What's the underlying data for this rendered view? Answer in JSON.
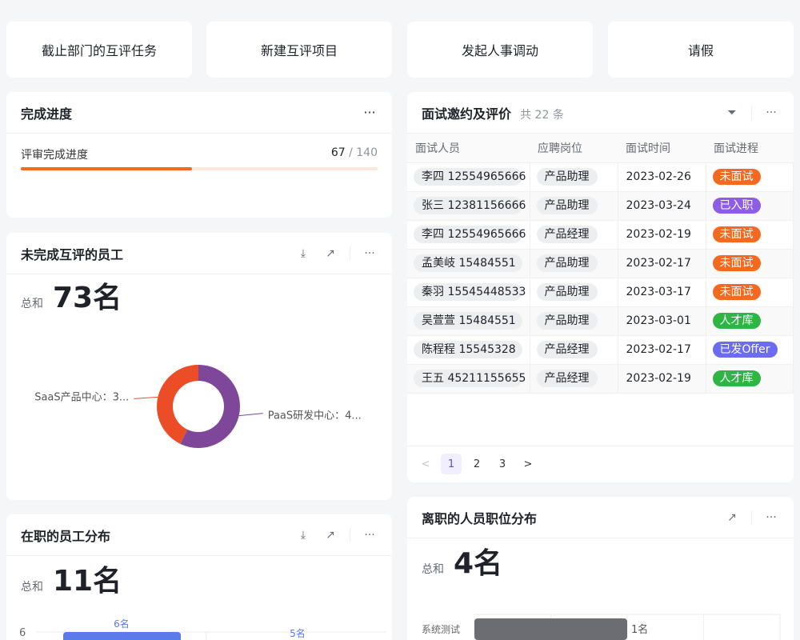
{
  "quick_actions": [
    "截止部门的互评任务",
    "新建互评项目",
    "发起人事调动",
    "请假"
  ],
  "progress_card": {
    "title": "完成进度",
    "label": "评审完成进度",
    "done": "67",
    "sep": " / ",
    "total": "140",
    "fraction": 0.479,
    "color": "#f26b1d"
  },
  "pending_card": {
    "title": "未完成互评的员工",
    "sum_label": "总和",
    "sum_value": "73名",
    "chart_data": {
      "type": "pie",
      "donut": true,
      "slices": [
        {
          "name": "PaaS研发中心",
          "value": 4,
          "label": "PaaS研发中心：4...",
          "color": "#7e479a"
        },
        {
          "name": "SaaS产品中心",
          "value": 3,
          "label": "SaaS产品中心：3...",
          "color": "#eb4d27"
        }
      ]
    }
  },
  "employee_card": {
    "title": "在职的员工分布",
    "sum_label": "总和",
    "sum_value": "11名",
    "chart_data": {
      "type": "bar",
      "y_ticks": [
        "6"
      ],
      "values": [
        6,
        5
      ],
      "data_labels": [
        "6名",
        "5名"
      ],
      "color": "#5b7bea"
    }
  },
  "interview_card": {
    "title": "面试邀约及评价",
    "count": "共 22 条",
    "columns": [
      "面试人员",
      "应聘岗位",
      "面试时间",
      "面试进程"
    ],
    "rows": [
      [
        "李四 12554965666",
        "产品助理",
        "2023-02-26",
        "未面试"
      ],
      [
        "张三 12381156666",
        "产品助理",
        "2023-03-24",
        "已入职"
      ],
      [
        "李四 12554965666",
        "产品经理",
        "2023-02-19",
        "未面试"
      ],
      [
        "孟美岐 15484551",
        "产品助理",
        "2023-02-17",
        "未面试"
      ],
      [
        "秦羽 15545448533",
        "产品助理",
        "2023-03-17",
        "未面试"
      ],
      [
        "吴萱萱 15484551",
        "产品助理",
        "2023-03-01",
        "人才库"
      ],
      [
        "陈程程 15545328",
        "产品经理",
        "2023-02-17",
        "已发Offer"
      ],
      [
        "王五 45211155655",
        "产品经理",
        "2023-02-19",
        "人才库"
      ]
    ],
    "status_colors": {
      "未面试": "#f5681f",
      "已入职": "#8e5de8",
      "人才库": "#2fb544",
      "已发Offer": "#6b6cf0"
    },
    "pagination": {
      "prev": "<",
      "pages": [
        "1",
        "2",
        "3"
      ],
      "current": "1",
      "next": ">"
    }
  },
  "resign_card": {
    "title": "离职的人员职位分布",
    "sum_label": "总和",
    "sum_value": "4名",
    "chart_data": {
      "type": "bar",
      "orientation": "horizontal",
      "categories": [
        "系统测试"
      ],
      "values": [
        1
      ],
      "data_labels": [
        "1名"
      ],
      "color": "#6b6d72"
    }
  },
  "icons": {
    "more": "···"
  }
}
